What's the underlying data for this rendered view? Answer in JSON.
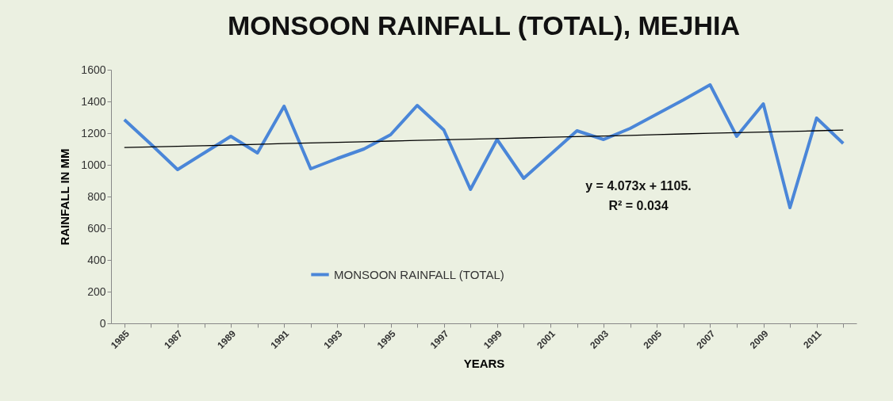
{
  "chart_data": {
    "type": "line",
    "title": "MONSOON RAINFALL (TOTAL), MEJHIA",
    "xlabel": "YEARS",
    "ylabel": "RAINFALL IN MM",
    "categories": [
      "1985",
      null,
      "1987",
      null,
      "1989",
      null,
      "1991",
      null,
      "1993",
      null,
      "1995",
      null,
      "1997",
      null,
      "1999",
      null,
      "2001",
      null,
      "2003",
      null,
      "2005",
      null,
      "2007",
      null,
      "2009",
      null,
      "2011",
      null
    ],
    "series": [
      {
        "name": "MONSOON RAINFALL (TOTAL)",
        "color": "#4a86d8",
        "values": [
          1285,
          1130,
          970,
          1075,
          1180,
          1075,
          1370,
          975,
          1040,
          1100,
          1190,
          1375,
          1220,
          845,
          1160,
          915,
          1065,
          1215,
          1160,
          1230,
          1320,
          1410,
          1505,
          1180,
          1385,
          730,
          1295,
          1135
        ]
      },
      {
        "type": "line",
        "color": "#000000",
        "values": [
          1109,
          1113,
          1117,
          1121,
          1125,
          1129,
          1134,
          1138,
          1142,
          1146,
          1150,
          1154,
          1158,
          1162,
          1166,
          1170,
          1174,
          1178,
          1182,
          1186,
          1191,
          1195,
          1199,
          1203,
          1207,
          1211,
          1215,
          1219
        ]
      }
    ],
    "ylim": [
      0,
      1600
    ],
    "yticks": [
      0,
      200,
      400,
      600,
      800,
      1000,
      1200,
      1400,
      1600
    ],
    "legend": "bottom",
    "annotations": [
      "y = 4.073x + 1105.",
      "R² = 0.034"
    ]
  }
}
